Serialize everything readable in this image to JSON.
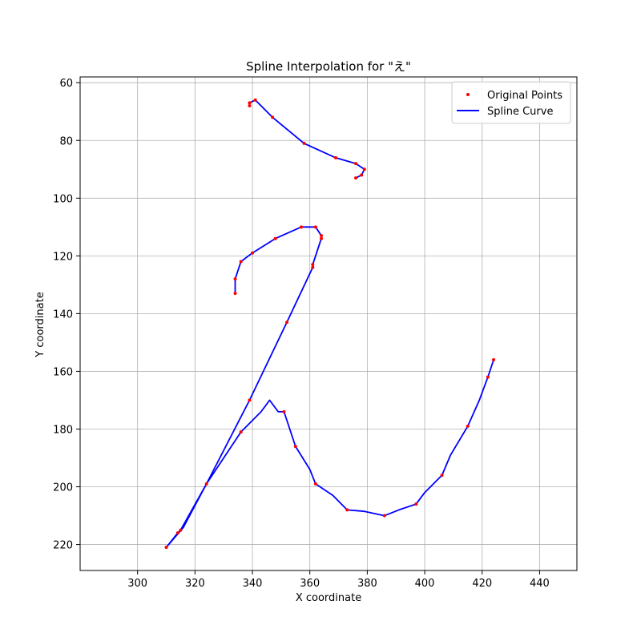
{
  "chart_data": {
    "type": "line",
    "title": "Spline Interpolation for \"え\"",
    "xlabel": "X coordinate",
    "ylabel": "Y coordinate",
    "xlim": [
      280,
      453
    ],
    "ylim": [
      229,
      58
    ],
    "y_inverted": true,
    "xticks": [
      300,
      320,
      340,
      360,
      380,
      400,
      420,
      440
    ],
    "yticks": [
      60,
      80,
      100,
      120,
      140,
      160,
      180,
      200,
      220
    ],
    "grid": true,
    "legend": {
      "location": "upper right",
      "entries": [
        {
          "label": "Original Points",
          "color": "#ff0000",
          "marker": "dot"
        },
        {
          "label": "Spline Curve",
          "color": "#0000ff",
          "marker": "line"
        }
      ]
    },
    "series": [
      {
        "name": "Original Points",
        "kind": "scatter",
        "color": "#ff0000",
        "points": [
          [
            339,
            68
          ],
          [
            339,
            67
          ],
          [
            341,
            66
          ],
          [
            347,
            72
          ],
          [
            358,
            81
          ],
          [
            369,
            86
          ],
          [
            376,
            88
          ],
          [
            379,
            90
          ],
          [
            378,
            92
          ],
          [
            376,
            93
          ],
          [
            334,
            133
          ],
          [
            334,
            128
          ],
          [
            336,
            122
          ],
          [
            340,
            119
          ],
          [
            348,
            114
          ],
          [
            357,
            110
          ],
          [
            362,
            110
          ],
          [
            364,
            113
          ],
          [
            364,
            114
          ],
          [
            361,
            123
          ],
          [
            361,
            124
          ],
          [
            352,
            143
          ],
          [
            339,
            170
          ],
          [
            324,
            199
          ],
          [
            315,
            215
          ],
          [
            314,
            216
          ],
          [
            310,
            221
          ],
          [
            336,
            181
          ],
          [
            351,
            174
          ],
          [
            355,
            186
          ],
          [
            362,
            199
          ],
          [
            373,
            208
          ],
          [
            386,
            210
          ],
          [
            397,
            206
          ],
          [
            406,
            196
          ],
          [
            415,
            179
          ],
          [
            422,
            162
          ],
          [
            424,
            156
          ]
        ]
      },
      {
        "name": "Spline Curve",
        "kind": "line",
        "color": "#0000ff",
        "segments": [
          [
            [
              339,
              68
            ],
            [
              339,
              67
            ],
            [
              341,
              66
            ],
            [
              347,
              72
            ],
            [
              358,
              81
            ],
            [
              369,
              86
            ],
            [
              376,
              88
            ],
            [
              379,
              90
            ],
            [
              378,
              92
            ],
            [
              376,
              93
            ]
          ],
          [
            [
              334,
              133
            ],
            [
              334,
              128
            ],
            [
              336,
              122
            ],
            [
              340,
              119
            ],
            [
              348,
              114
            ],
            [
              357,
              110
            ],
            [
              362,
              110
            ],
            [
              364,
              113
            ],
            [
              364,
              114
            ],
            [
              361,
              123
            ],
            [
              361,
              124
            ],
            [
              352,
              143
            ],
            [
              339,
              170
            ],
            [
              324,
              199
            ],
            [
              315,
              215
            ],
            [
              314,
              216
            ],
            [
              310,
              221
            ],
            [
              316,
              214
            ],
            [
              324,
              199
            ],
            [
              336,
              181
            ],
            [
              343,
              174
            ],
            [
              346,
              170
            ],
            [
              349,
              174
            ],
            [
              351,
              174
            ],
            [
              355,
              186
            ],
            [
              360,
              194
            ],
            [
              362,
              199
            ],
            [
              368,
              203
            ],
            [
              373,
              208
            ],
            [
              379,
              208.5
            ],
            [
              386,
              210
            ],
            [
              391,
              208
            ],
            [
              397,
              206
            ],
            [
              400,
              202
            ],
            [
              406,
              196
            ],
            [
              409,
              189
            ],
            [
              415,
              179
            ],
            [
              419,
              170
            ],
            [
              422,
              162
            ],
            [
              424,
              156
            ]
          ]
        ]
      }
    ]
  }
}
